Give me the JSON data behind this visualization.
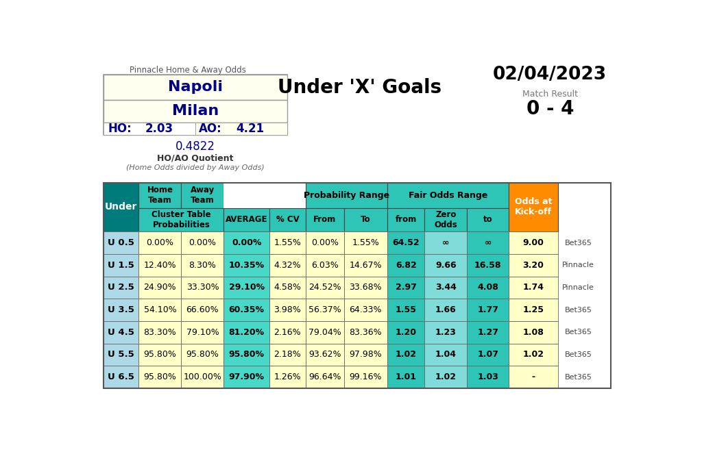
{
  "title_pinnacle": "Pinnacle Home & Away Odds",
  "team_home": "Napoli",
  "team_away": "Milan",
  "ho": "2.03",
  "ao": "4.21",
  "quotient": "0.4822",
  "quotient_label": "HO/AO Quotient",
  "quotient_sublabel": "(Home Odds divided by Away Odds)",
  "main_title": "Under 'X' Goals",
  "date": "02/04/2023",
  "match_result_label": "Match Result",
  "match_result": "0 - 4",
  "rows": [
    {
      "label": "U 0.5",
      "home_prob": "0.00%",
      "away_prob": "0.00%",
      "average": "0.00%",
      "cv": "1.55%",
      "prob_from": "0.00%",
      "prob_to": "1.55%",
      "fair_from": "64.52",
      "fair_zero": "∞",
      "fair_to": "∞",
      "odds_ko": "9.00",
      "bookmaker": "Bet365"
    },
    {
      "label": "U 1.5",
      "home_prob": "12.40%",
      "away_prob": "8.30%",
      "average": "10.35%",
      "cv": "4.32%",
      "prob_from": "6.03%",
      "prob_to": "14.67%",
      "fair_from": "6.82",
      "fair_zero": "9.66",
      "fair_to": "16.58",
      "odds_ko": "3.20",
      "bookmaker": "Pinnacle"
    },
    {
      "label": "U 2.5",
      "home_prob": "24.90%",
      "away_prob": "33.30%",
      "average": "29.10%",
      "cv": "4.58%",
      "prob_from": "24.52%",
      "prob_to": "33.68%",
      "fair_from": "2.97",
      "fair_zero": "3.44",
      "fair_to": "4.08",
      "odds_ko": "1.74",
      "bookmaker": "Pinnacle"
    },
    {
      "label": "U 3.5",
      "home_prob": "54.10%",
      "away_prob": "66.60%",
      "average": "60.35%",
      "cv": "3.98%",
      "prob_from": "56.37%",
      "prob_to": "64.33%",
      "fair_from": "1.55",
      "fair_zero": "1.66",
      "fair_to": "1.77",
      "odds_ko": "1.25",
      "bookmaker": "Bet365"
    },
    {
      "label": "U 4.5",
      "home_prob": "83.30%",
      "away_prob": "79.10%",
      "average": "81.20%",
      "cv": "2.16%",
      "prob_from": "79.04%",
      "prob_to": "83.36%",
      "fair_from": "1.20",
      "fair_zero": "1.23",
      "fair_to": "1.27",
      "odds_ko": "1.08",
      "bookmaker": "Bet365"
    },
    {
      "label": "U 5.5",
      "home_prob": "95.80%",
      "away_prob": "95.80%",
      "average": "95.80%",
      "cv": "2.18%",
      "prob_from": "93.62%",
      "prob_to": "97.98%",
      "fair_from": "1.02",
      "fair_zero": "1.04",
      "fair_to": "1.07",
      "odds_ko": "1.02",
      "bookmaker": "Bet365"
    },
    {
      "label": "U 6.5",
      "home_prob": "95.80%",
      "away_prob": "100.00%",
      "average": "97.90%",
      "cv": "1.26%",
      "prob_from": "96.64%",
      "prob_to": "99.16%",
      "fair_from": "1.01",
      "fair_zero": "1.02",
      "fair_to": "1.03",
      "odds_ko": "-",
      "bookmaker": "Bet365"
    }
  ],
  "c_dark_teal": "#007B7B",
  "c_teal": "#2EC4B6",
  "c_orange": "#FF8C00",
  "c_lightblue": "#A8E8E4",
  "c_mint": "#5DD8CC",
  "c_cream": "#FFFFF0",
  "c_yellow": "#FFFFE0",
  "c_under_row": "#A8E8E4",
  "c_avg_data": "#40CCC0",
  "c_fair_data1": "#40CCC0",
  "c_fair_data2": "#80DDD8",
  "c_fair_data3": "#40CCC0",
  "c_team_box_fill": "#FFFFF0",
  "c_ho_left": "#FFFFFF",
  "c_ho_right": "#FFFFF0"
}
